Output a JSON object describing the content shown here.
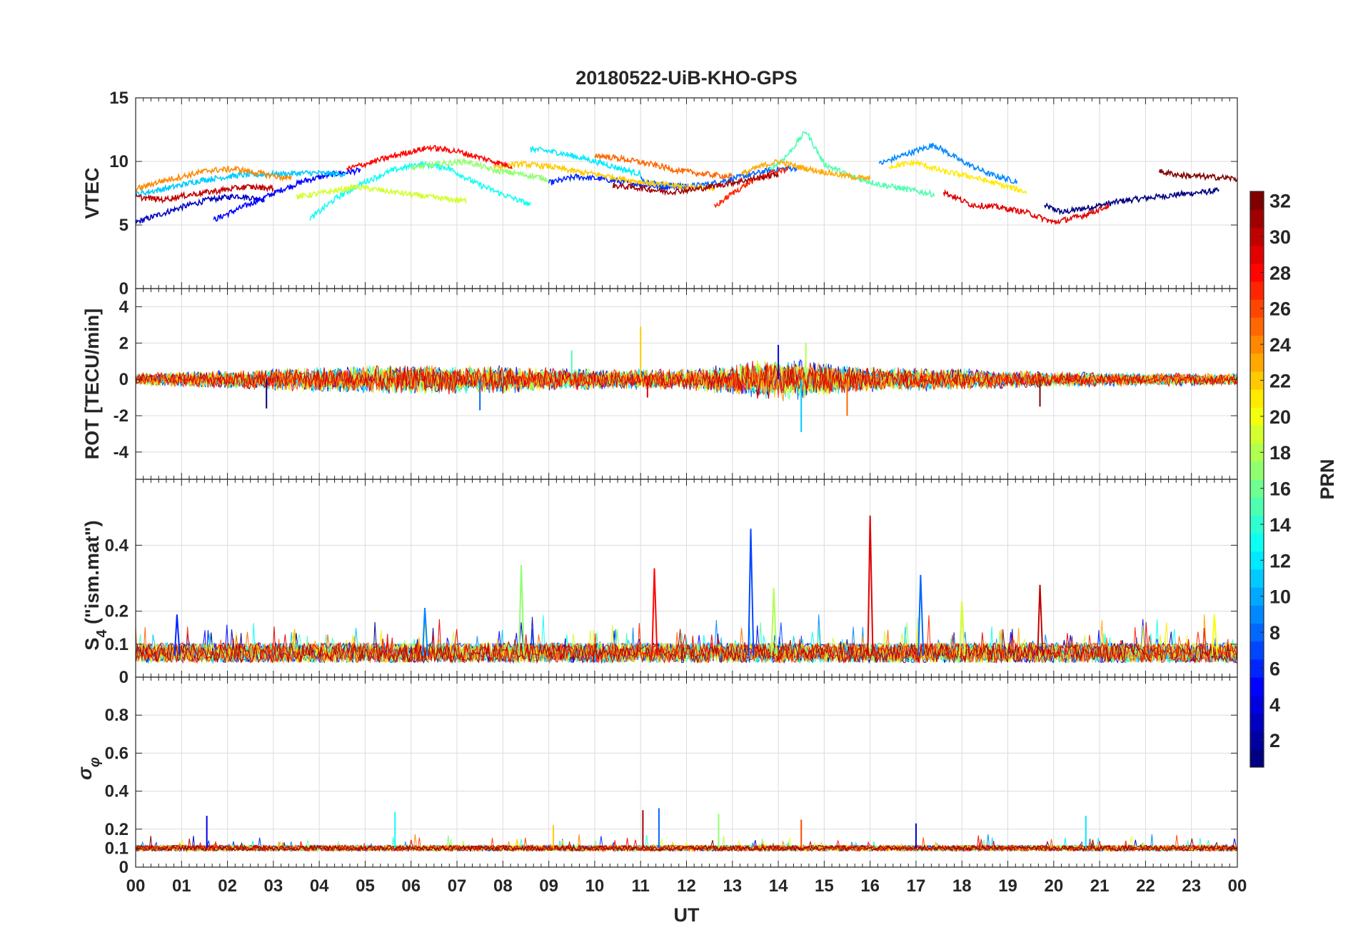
{
  "chart_data": [
    {
      "type": "line",
      "panel": "vtec",
      "title": "20180522-UiB-KHO-GPS",
      "xlabel": "",
      "ylabel": "VTEC",
      "xlim": [
        0,
        24
      ],
      "ylim": [
        0,
        15
      ],
      "yticks": [
        0,
        5,
        10,
        15
      ],
      "ytick_labels": [
        "0",
        "5",
        "10",
        "15"
      ],
      "grid": true,
      "series": [
        {
          "prn": 1,
          "x": [
            19.8,
            20.2,
            20.8,
            21.5,
            22.2,
            23.0,
            23.6
          ],
          "y": [
            6.5,
            6.0,
            6.4,
            6.9,
            7.2,
            7.5,
            7.7
          ]
        },
        {
          "prn": 3,
          "x": [
            0.0,
            0.5,
            1.0,
            1.6,
            2.2,
            2.8
          ],
          "y": [
            5.2,
            5.8,
            6.4,
            7.0,
            7.3,
            7.0
          ]
        },
        {
          "prn": 5,
          "x": [
            1.7,
            2.2,
            2.7,
            3.2,
            3.7,
            4.3,
            4.9
          ],
          "y": [
            5.4,
            6.2,
            7.0,
            7.8,
            8.5,
            9.0,
            9.3
          ]
        },
        {
          "prn": 6,
          "x": [
            9.0,
            9.6,
            10.2,
            10.8,
            11.4,
            12.0
          ],
          "y": [
            8.3,
            8.8,
            8.6,
            8.3,
            8.0,
            8.1
          ]
        },
        {
          "prn": 8,
          "x": [
            11.0,
            11.4,
            12.0,
            12.6,
            13.2,
            13.8,
            14.4
          ],
          "y": [
            8.6,
            8.2,
            8.0,
            8.3,
            8.8,
            9.3,
            9.5
          ]
        },
        {
          "prn": 9,
          "x": [
            16.2,
            16.8,
            17.4,
            18.0,
            18.6,
            19.2
          ],
          "y": [
            9.8,
            10.6,
            11.3,
            10.0,
            9.0,
            8.4
          ]
        },
        {
          "prn": 11,
          "x": [
            0.0,
            0.7,
            1.4,
            2.2,
            3.0,
            3.8,
            4.6
          ],
          "y": [
            7.4,
            7.9,
            8.5,
            8.9,
            9.0,
            9.1,
            9.0
          ]
        },
        {
          "prn": 12,
          "x": [
            8.6,
            9.2,
            9.8,
            10.4,
            11.0
          ],
          "y": [
            11.0,
            10.7,
            10.2,
            9.6,
            9.0
          ]
        },
        {
          "prn": 13,
          "x": [
            3.8,
            4.4,
            5.0,
            5.6,
            6.2,
            6.8,
            7.4,
            8.0,
            8.6
          ],
          "y": [
            5.5,
            7.2,
            8.4,
            9.3,
            9.8,
            9.5,
            8.3,
            7.4,
            6.6
          ]
        },
        {
          "prn": 15,
          "x": [
            13.8,
            14.2,
            14.6,
            15.0,
            15.6,
            16.2,
            16.8,
            17.4
          ],
          "y": [
            9.3,
            10.5,
            12.4,
            9.8,
            8.8,
            8.2,
            7.8,
            7.4
          ]
        },
        {
          "prn": 17,
          "x": [
            6.0,
            6.6,
            7.2,
            7.8,
            8.4,
            9.0
          ],
          "y": [
            9.5,
            9.8,
            10.0,
            9.3,
            9.0,
            8.6
          ]
        },
        {
          "prn": 19,
          "x": [
            3.5,
            4.2,
            4.8,
            5.4,
            6.0,
            6.6,
            7.2
          ],
          "y": [
            7.2,
            7.6,
            8.0,
            7.7,
            7.4,
            7.1,
            6.9
          ]
        },
        {
          "prn": 21,
          "x": [
            16.4,
            17.0,
            17.6,
            18.2,
            18.8,
            19.4
          ],
          "y": [
            9.6,
            9.9,
            9.2,
            8.8,
            8.2,
            7.6
          ]
        },
        {
          "prn": 22,
          "x": [
            7.8,
            8.4,
            9.0,
            9.6,
            10.2,
            10.8,
            11.4,
            12.0,
            12.6
          ],
          "y": [
            9.6,
            9.8,
            9.6,
            9.2,
            8.9,
            8.5,
            8.2,
            8.0,
            7.9
          ]
        },
        {
          "prn": 23,
          "x": [
            13.2,
            13.6,
            14.0,
            14.4,
            14.8,
            15.4,
            16.0
          ],
          "y": [
            9.0,
            9.6,
            10.0,
            9.6,
            9.3,
            8.9,
            8.6
          ]
        },
        {
          "prn": 24,
          "x": [
            0.0,
            0.5,
            1.0,
            1.6,
            2.2,
            2.8,
            3.4
          ],
          "y": [
            7.8,
            8.4,
            8.8,
            9.3,
            9.4,
            9.0,
            8.6
          ]
        },
        {
          "prn": 25,
          "x": [
            10.0,
            10.6,
            11.2,
            11.8,
            12.4,
            13.0
          ],
          "y": [
            10.5,
            10.2,
            9.8,
            9.3,
            9.0,
            8.8
          ]
        },
        {
          "prn": 27,
          "x": [
            12.6,
            13.0,
            13.4,
            13.8,
            14.2
          ],
          "y": [
            6.4,
            7.5,
            8.4,
            9.0,
            9.4
          ]
        },
        {
          "prn": 28,
          "x": [
            4.6,
            5.2,
            5.8,
            6.4,
            7.0,
            7.6,
            8.2
          ],
          "y": [
            9.4,
            10.0,
            10.6,
            11.1,
            10.8,
            10.2,
            9.6
          ]
        },
        {
          "prn": 29,
          "x": [
            17.6,
            18.2,
            18.8,
            19.4,
            20.0,
            20.6,
            21.2
          ],
          "y": [
            7.6,
            6.6,
            6.4,
            6.0,
            5.2,
            5.7,
            6.5
          ]
        },
        {
          "prn": 30,
          "x": [
            0.0,
            0.6,
            1.2,
            1.8,
            2.4,
            3.0
          ],
          "y": [
            7.2,
            7.0,
            7.4,
            7.7,
            8.0,
            7.9
          ]
        },
        {
          "prn": 31,
          "x": [
            10.4,
            11.0,
            11.6,
            12.2,
            12.8,
            13.4,
            14.0
          ],
          "y": [
            8.1,
            7.9,
            7.6,
            7.8,
            8.2,
            8.6,
            9.0
          ]
        },
        {
          "prn": 32,
          "x": [
            22.3,
            22.8,
            23.3,
            23.8,
            24.0
          ],
          "y": [
            9.2,
            8.9,
            8.8,
            8.7,
            8.6
          ]
        }
      ]
    },
    {
      "type": "line",
      "panel": "rot",
      "xlabel": "",
      "ylabel": "ROT [TECU/min]",
      "xlim": [
        0,
        24
      ],
      "ylim": [
        -5.5,
        5.0
      ],
      "yticks": [
        -4,
        -2,
        0,
        2,
        4
      ],
      "ytick_labels": [
        "-4",
        "-2",
        "0",
        "2",
        "4"
      ],
      "grid": true,
      "baseline": 0,
      "noise_envelope": {
        "x": [
          0,
          2,
          4,
          6,
          8,
          10,
          12,
          13,
          14,
          15,
          16,
          18,
          20,
          22,
          24
        ],
        "amp": [
          0.35,
          0.55,
          0.75,
          0.85,
          0.8,
          0.6,
          0.6,
          0.9,
          1.3,
          1.0,
          0.7,
          0.65,
          0.45,
          0.4,
          0.35
        ]
      },
      "spikes": [
        {
          "x": 2.85,
          "y": -1.6
        },
        {
          "x": 7.5,
          "y": -1.7
        },
        {
          "x": 9.5,
          "y": 1.6
        },
        {
          "x": 11.0,
          "y": 2.9
        },
        {
          "x": 11.15,
          "y": -1.0
        },
        {
          "x": 14.0,
          "y": 1.9
        },
        {
          "x": 14.5,
          "y": -2.9
        },
        {
          "x": 14.6,
          "y": 2.0
        },
        {
          "x": 15.5,
          "y": -2.0
        },
        {
          "x": 19.7,
          "y": -1.5
        }
      ]
    },
    {
      "type": "line",
      "panel": "s4",
      "xlabel": "",
      "ylabel": "S4 (\"ism.mat\")",
      "ylabel_main": "S",
      "ylabel_sub": "4",
      "ylabel_rest": " (\"ism.mat\")",
      "xlim": [
        0,
        24
      ],
      "ylim": [
        0,
        0.6
      ],
      "yticks": [
        0,
        0.1,
        0.2,
        0.4
      ],
      "ytick_labels": [
        "0",
        "0.1",
        "0.2",
        "0.4"
      ],
      "grid": true,
      "baseline": 0.065,
      "spikes": [
        {
          "x": 0.9,
          "y": 0.19
        },
        {
          "x": 8.4,
          "y": 0.34
        },
        {
          "x": 11.3,
          "y": 0.33
        },
        {
          "x": 13.4,
          "y": 0.45
        },
        {
          "x": 13.9,
          "y": 0.27
        },
        {
          "x": 16.0,
          "y": 0.49
        },
        {
          "x": 17.1,
          "y": 0.31
        },
        {
          "x": 18.0,
          "y": 0.23
        },
        {
          "x": 19.7,
          "y": 0.28
        },
        {
          "x": 6.3,
          "y": 0.21
        },
        {
          "x": 23.5,
          "y": 0.19
        }
      ]
    },
    {
      "type": "line",
      "panel": "sigma_phi",
      "xlabel": "UT",
      "ylabel": "σφ",
      "ylabel_main": "σ",
      "ylabel_sub": "φ",
      "xlim": [
        0,
        24
      ],
      "ylim": [
        0,
        1.0
      ],
      "yticks": [
        0,
        0.1,
        0.2,
        0.4,
        0.6,
        0.8
      ],
      "ytick_labels": [
        "0",
        "0.1",
        "0.2",
        "0.4",
        "0.6",
        "0.8"
      ],
      "xticks": [
        0,
        1,
        2,
        3,
        4,
        5,
        6,
        7,
        8,
        9,
        10,
        11,
        12,
        13,
        14,
        15,
        16,
        17,
        18,
        19,
        20,
        21,
        22,
        23,
        24
      ],
      "xtick_labels": [
        "00",
        "01",
        "02",
        "03",
        "04",
        "05",
        "06",
        "07",
        "08",
        "09",
        "10",
        "11",
        "12",
        "13",
        "14",
        "15",
        "16",
        "17",
        "18",
        "19",
        "20",
        "21",
        "22",
        "23",
        "00"
      ],
      "grid": true,
      "baseline": 0.1,
      "spikes": [
        {
          "x": 1.55,
          "y": 0.27
        },
        {
          "x": 5.65,
          "y": 0.29
        },
        {
          "x": 9.1,
          "y": 0.22
        },
        {
          "x": 11.05,
          "y": 0.3
        },
        {
          "x": 11.4,
          "y": 0.31
        },
        {
          "x": 12.7,
          "y": 0.28
        },
        {
          "x": 14.5,
          "y": 0.25
        },
        {
          "x": 17.0,
          "y": 0.23
        },
        {
          "x": 20.7,
          "y": 0.27
        }
      ]
    },
    {
      "type": "heatmap",
      "panel": "colorbar",
      "label": "PRN",
      "range": [
        1,
        32
      ],
      "ticks": [
        2,
        4,
        6,
        8,
        10,
        12,
        14,
        16,
        18,
        20,
        22,
        24,
        26,
        28,
        30,
        32
      ],
      "colormap": "jet",
      "levels": 32
    }
  ]
}
